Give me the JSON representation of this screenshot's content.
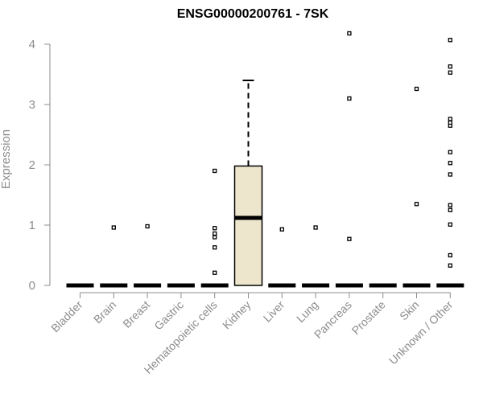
{
  "chart_data": {
    "type": "boxplot",
    "title": "ENSG00000200761 - 7SK",
    "xlabel": "",
    "ylabel": "Expression",
    "ylim": [
      0,
      4.2
    ],
    "yticks": [
      0,
      1,
      2,
      3,
      4
    ],
    "grid": false,
    "colors": {
      "box_fill": "#ede6cd",
      "box_stroke": "#000000",
      "axis": "#8c8c8c",
      "text": "#8c8c8c"
    },
    "categories": [
      "Bladder",
      "Brain",
      "Breast",
      "Gastric",
      "Hematopoietic cells",
      "Kidney",
      "Liver",
      "Lung",
      "Pancreas",
      "Prostate",
      "Skin",
      "Unknown / Other"
    ],
    "boxes": [
      {
        "category": "Bladder",
        "q1": 0,
        "median": 0,
        "q3": 0,
        "whisker_low": 0,
        "whisker_high": 0,
        "outliers": []
      },
      {
        "category": "Brain",
        "q1": 0,
        "median": 0,
        "q3": 0,
        "whisker_low": 0,
        "whisker_high": 0,
        "outliers": [
          0.96
        ]
      },
      {
        "category": "Breast",
        "q1": 0,
        "median": 0,
        "q3": 0,
        "whisker_low": 0,
        "whisker_high": 0,
        "outliers": [
          0.98
        ]
      },
      {
        "category": "Gastric",
        "q1": 0,
        "median": 0,
        "q3": 0,
        "whisker_low": 0,
        "whisker_high": 0,
        "outliers": []
      },
      {
        "category": "Hematopoietic cells",
        "q1": 0,
        "median": 0,
        "q3": 0,
        "whisker_low": 0,
        "whisker_high": 0,
        "outliers": [
          0.21,
          0.63,
          0.8,
          0.86,
          0.95,
          1.9
        ]
      },
      {
        "category": "Kidney",
        "q1": 0,
        "median": 1.12,
        "q3": 1.98,
        "whisker_low": 0,
        "whisker_high": 3.4,
        "outliers": []
      },
      {
        "category": "Liver",
        "q1": 0,
        "median": 0,
        "q3": 0,
        "whisker_low": 0,
        "whisker_high": 0,
        "outliers": [
          0.93
        ]
      },
      {
        "category": "Lung",
        "q1": 0,
        "median": 0,
        "q3": 0,
        "whisker_low": 0,
        "whisker_high": 0,
        "outliers": [
          0.96
        ]
      },
      {
        "category": "Pancreas",
        "q1": 0,
        "median": 0,
        "q3": 0,
        "whisker_low": 0,
        "whisker_high": 0,
        "outliers": [
          0.77,
          3.1,
          4.18
        ]
      },
      {
        "category": "Prostate",
        "q1": 0,
        "median": 0,
        "q3": 0,
        "whisker_low": 0,
        "whisker_high": 0,
        "outliers": []
      },
      {
        "category": "Skin",
        "q1": 0,
        "median": 0,
        "q3": 0,
        "whisker_low": 0,
        "whisker_high": 0,
        "outliers": [
          1.35,
          3.26
        ]
      },
      {
        "category": "Unknown / Other",
        "q1": 0,
        "median": 0,
        "q3": 0,
        "whisker_low": 0,
        "whisker_high": 0,
        "outliers": [
          0.33,
          0.5,
          1.01,
          1.25,
          1.33,
          1.84,
          2.03,
          2.21,
          2.65,
          2.7,
          2.76,
          3.53,
          3.63,
          4.07
        ]
      }
    ]
  }
}
